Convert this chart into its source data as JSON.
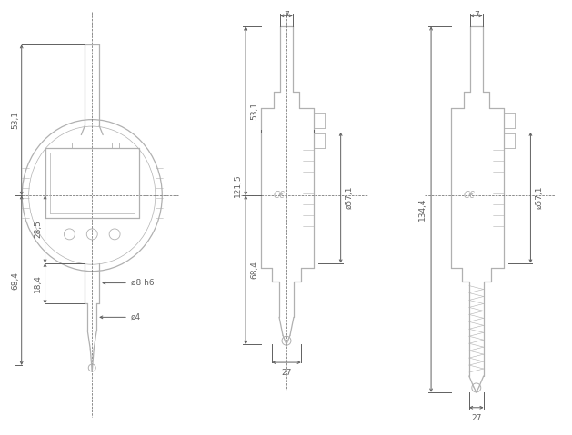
{
  "bg_color": "#ffffff",
  "line_color": "#b0b0b0",
  "dim_color": "#606060",
  "lw": 0.9,
  "dim_lw": 0.7,
  "labels": {
    "v1_531": "53,1",
    "v1_684": "68,4",
    "v1_285": "28,5",
    "v1_184": "18,4",
    "v1_8h6": "ø8 h6",
    "v1_4": "ø4",
    "v2_7": "7",
    "v2_1215": "121,5",
    "v2_531": "53,1",
    "v2_684": "68,4",
    "v2_571": "ø57,1",
    "v2_27": "27",
    "v3_7": "7",
    "v3_1344": "134,4",
    "v3_571": "ø57,1",
    "v3_27": "27"
  }
}
